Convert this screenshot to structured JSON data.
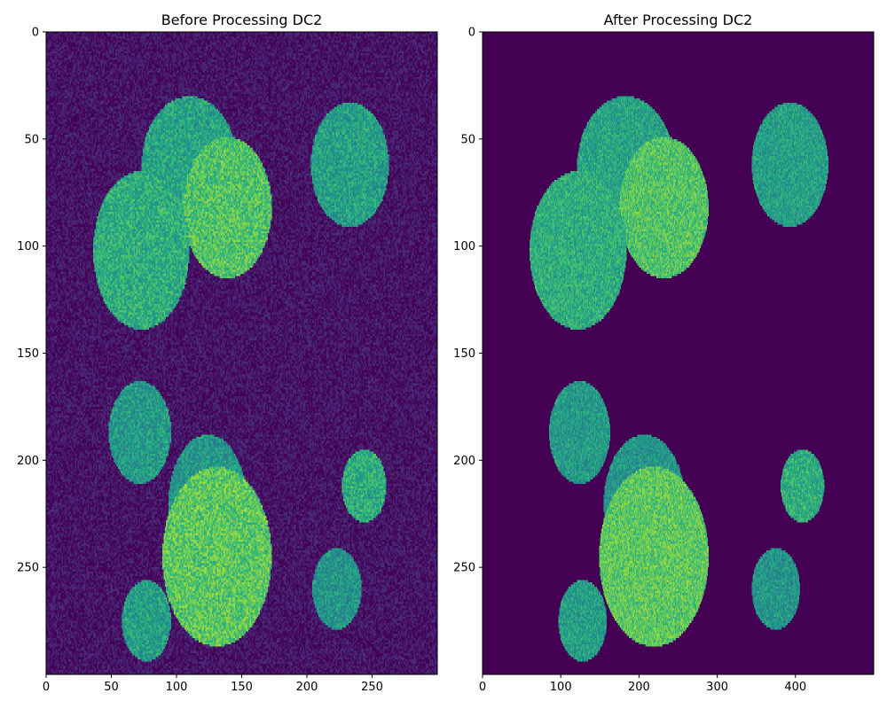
{
  "chart_data": [
    {
      "type": "heatmap",
      "title": "Before Processing DC2",
      "xlabel": "",
      "ylabel": "",
      "image_shape": [
        300,
        300
      ],
      "xlim": [
        0,
        300
      ],
      "ylim": [
        300,
        0
      ],
      "x_ticks": [
        0,
        50,
        100,
        150,
        200,
        250
      ],
      "y_ticks": [
        0,
        50,
        100,
        150,
        200,
        250
      ],
      "colormap": "viridis",
      "background": {
        "level": 0.05,
        "noise": true
      },
      "blobs": [
        {
          "cx": 110,
          "cy": 63,
          "rx": 37,
          "ry": 33,
          "level": 0.58
        },
        {
          "cx": 139,
          "cy": 82,
          "rx": 34,
          "ry": 33,
          "level": 0.72
        },
        {
          "cx": 73,
          "cy": 102,
          "rx": 37,
          "ry": 37,
          "level": 0.62
        },
        {
          "cx": 233,
          "cy": 62,
          "rx": 30,
          "ry": 29,
          "level": 0.56
        },
        {
          "cx": 72,
          "cy": 187,
          "rx": 24,
          "ry": 24,
          "level": 0.54
        },
        {
          "cx": 124,
          "cy": 220,
          "rx": 30,
          "ry": 32,
          "level": 0.52
        },
        {
          "cx": 131,
          "cy": 245,
          "rx": 42,
          "ry": 42,
          "level": 0.74
        },
        {
          "cx": 244,
          "cy": 212,
          "rx": 17,
          "ry": 17,
          "level": 0.62
        },
        {
          "cx": 223,
          "cy": 260,
          "rx": 19,
          "ry": 19,
          "level": 0.52
        },
        {
          "cx": 77,
          "cy": 275,
          "rx": 19,
          "ry": 19,
          "level": 0.56
        }
      ]
    },
    {
      "type": "heatmap",
      "title": "After Processing DC2",
      "xlabel": "",
      "ylabel": "",
      "image_shape": [
        300,
        500
      ],
      "xlim": [
        0,
        500
      ],
      "ylim": [
        300,
        0
      ],
      "x_ticks": [
        0,
        100,
        200,
        300,
        400
      ],
      "y_ticks": [
        0,
        50,
        100,
        150,
        200,
        250
      ],
      "colormap": "viridis",
      "background": {
        "level": 0.0,
        "noise": false
      },
      "blobs": [
        {
          "cx": 183,
          "cy": 63,
          "rx": 62,
          "ry": 33,
          "level": 0.58
        },
        {
          "cx": 232,
          "cy": 82,
          "rx": 57,
          "ry": 33,
          "level": 0.72
        },
        {
          "cx": 122,
          "cy": 102,
          "rx": 62,
          "ry": 37,
          "level": 0.62
        },
        {
          "cx": 393,
          "cy": 62,
          "rx": 49,
          "ry": 29,
          "level": 0.56
        },
        {
          "cx": 124,
          "cy": 187,
          "rx": 39,
          "ry": 24,
          "level": 0.54
        },
        {
          "cx": 207,
          "cy": 220,
          "rx": 52,
          "ry": 32,
          "level": 0.52
        },
        {
          "cx": 219,
          "cy": 245,
          "rx": 70,
          "ry": 42,
          "level": 0.74
        },
        {
          "cx": 409,
          "cy": 212,
          "rx": 28,
          "ry": 17,
          "level": 0.62
        },
        {
          "cx": 375,
          "cy": 260,
          "rx": 31,
          "ry": 19,
          "level": 0.52
        },
        {
          "cx": 128,
          "cy": 275,
          "rx": 31,
          "ry": 19,
          "level": 0.56
        }
      ]
    }
  ]
}
